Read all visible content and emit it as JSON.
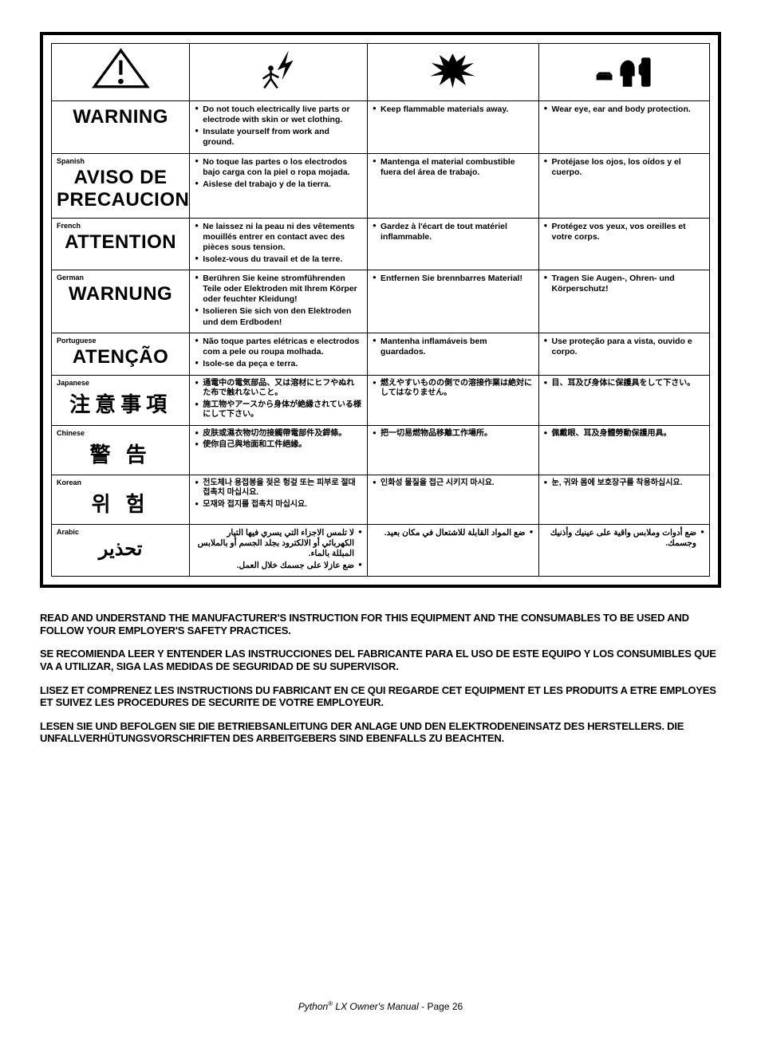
{
  "table": {
    "rows": [
      {
        "lang": "",
        "word": "WARNING",
        "col1": [
          "Do not touch electrically live parts or electrode with skin or wet clothing.",
          "Insulate yourself from work and ground."
        ],
        "col2": [
          "Keep flammable materials away."
        ],
        "col3": [
          "Wear eye, ear and body protection."
        ]
      },
      {
        "lang": "Spanish",
        "word": "AVISO DE PRECAUCION",
        "col1": [
          "No toque las partes o los electrodos bajo carga con la piel o ropa mojada.",
          "Aislese del trabajo y de la tierra."
        ],
        "col2": [
          "Mantenga el material combustible fuera del área de trabajo."
        ],
        "col3": [
          "Protéjase los ojos, los oídos y el cuerpo."
        ]
      },
      {
        "lang": "French",
        "word": "ATTENTION",
        "col1": [
          "Ne laissez ni la peau ni des vêtements mouillés entrer en contact avec des pièces sous tension.",
          "Isolez-vous du travail et de la terre."
        ],
        "col2": [
          "Gardez à l'écart de tout matériel inflammable."
        ],
        "col3": [
          "Protégez vos yeux, vos oreilles et votre corps."
        ]
      },
      {
        "lang": "German",
        "word": "WARNUNG",
        "col1": [
          "Berühren Sie keine stromführenden Teile oder Elektroden mit Ihrem Körper oder feuchter Kleidung!",
          "Isolieren Sie sich von den Elektroden und dem Erdboden!"
        ],
        "col2": [
          "Entfernen Sie brennbarres Material!"
        ],
        "col3": [
          "Tragen Sie Augen-, Ohren- und Körperschutz!"
        ]
      },
      {
        "lang": "Portuguese",
        "word": "ATENÇÃO",
        "col1": [
          "Não toque partes elétricas e electrodos com a pele ou roupa molhada.",
          "Isole-se da peça e terra."
        ],
        "col2": [
          "Mantenha inflamáveis bem guardados."
        ],
        "col3": [
          "Use proteção para a vista, ouvido e corpo."
        ]
      },
      {
        "lang": "Japanese",
        "word": "注意事項",
        "cjk": true,
        "col1": [
          "通電中の電気部品、又は溶材にヒフやぬれた布で触れないこと。",
          "施工物やアースから身体が絶縁されている様にして下さい。"
        ],
        "col2": [
          "燃えやすいものの側での溶接作業は絶対にしてはなりません。"
        ],
        "col3": [
          "目、耳及び身体に保護具をして下さい。"
        ]
      },
      {
        "lang": "Chinese",
        "word": "警 告",
        "cjk": true,
        "col1": [
          "皮肤或濕衣物切勿接觸帶電部件及銲條。",
          "使你自己與地面和工件絕緣。"
        ],
        "col2": [
          "把一切易燃物品移離工作場所。"
        ],
        "col3": [
          "佩戴眼、耳及身體勞動保護用具。"
        ]
      },
      {
        "lang": "Korean",
        "word": "위 험",
        "cjk": true,
        "col1": [
          "전도체나 용접봉을 젖은 헝겊 또는 피부로 절대 접촉치 마십시요.",
          "모재와 접지를 접촉치 마십시요."
        ],
        "col2": [
          "인화성 물질을 접근 시키지 마시요."
        ],
        "col3": [
          "눈, 귀와 몸에 보호장구를 착용하십시요."
        ]
      },
      {
        "lang": "Arabic",
        "word": "تحذير",
        "rtl": true,
        "col1": [
          "لا تلمس الاجزاء التي يسري فيها التيار الكهربائي أو الالكترود بجلد الجسم أو بالملابس المبللة بالماء.",
          "ضع عازلا على جسمك خلال العمل."
        ],
        "col2": [
          "ضع المواد القابلة للاشتعال في مكان بعيد."
        ],
        "col3": [
          "ضع أدوات وملابس واقية على عينيك وأذنيك وجسمك."
        ]
      }
    ]
  },
  "bottomNotes": [
    "READ AND UNDERSTAND THE MANUFACTURER'S INSTRUCTION FOR THIS EQUIPMENT AND THE CONSUMABLES TO BE USED AND FOLLOW YOUR EMPLOYER'S SAFETY PRACTICES.",
    "SE RECOMIENDA LEER Y ENTENDER LAS INSTRUCCIONES DEL FABRICANTE PARA EL USO DE ESTE EQUIPO Y LOS CONSUMIBLES QUE VA A UTILIZAR, SIGA LAS MEDIDAS DE SEGURIDAD DE SU SUPERVISOR.",
    "LISEZ ET COMPRENEZ LES INSTRUCTIONS DU FABRICANT EN CE QUI REGARDE CET EQUIPMENT ET LES PRODUITS A ETRE EMPLOYES ET SUIVEZ LES PROCEDURES DE SECURITE DE VOTRE EMPLOYEUR.",
    "LESEN SIE UND BEFOLGEN SIE DIE BETRIEBSANLEITUNG DER ANLAGE UND DEN ELEKTRODENEINSATZ DES HERSTELLERS. DIE UNFALLVERHÜTUNGSVORSCHRIFTEN DES ARBEITGEBERS SIND EBENFALLS ZU BEACHTEN."
  ],
  "footer": {
    "product": "Python",
    "model": "LX Owner's Manual",
    "pageLabel": "Page",
    "pageNum": "26"
  }
}
